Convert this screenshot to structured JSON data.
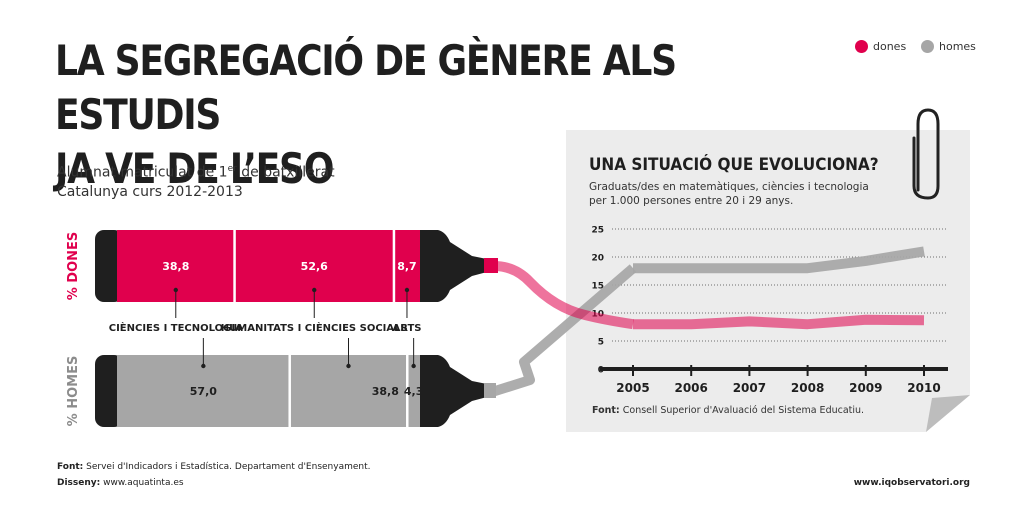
{
  "title_lines": [
    "LA SEGREGACIÓ DE GÈNERE ALS ESTUDIS",
    "JA VE DE L’ESO"
  ],
  "subtitle": {
    "line1_pre": "Alumnat matriculat de 1",
    "line1_sup": "er",
    "line1_post": " de batxillerat",
    "line2": "Catalunya curs 2012-2013"
  },
  "legend": [
    {
      "label": "dones",
      "color": "#e0004d"
    },
    {
      "label": "homes",
      "color": "#a6a6a6"
    }
  ],
  "colors": {
    "dones": "#e0004d",
    "homes": "#a6a6a6",
    "dark": "#1f1f1f",
    "paper": "#ececec"
  },
  "markers": {
    "women_axis_label": "% DONES",
    "men_axis_label": "% HOMES",
    "categories": [
      "CIÈNCIES I TECNOLOGIA",
      "HUMANITATS I CIÈNCIES SOCIALS",
      "ARTS"
    ],
    "women_values": [
      38.8,
      52.6,
      8.7
    ],
    "women_labels": [
      "38,8",
      "52,6",
      "8,7"
    ],
    "men_values": [
      57.0,
      38.8,
      4.3
    ],
    "men_labels": [
      "57,0",
      "38,8",
      "4,3"
    ]
  },
  "chart_data": {
    "type": "line",
    "title": "UNA SITUACIÓ QUE EVOLUCIONA?",
    "subtitle_lines": [
      "Graduats/des en matemàtiques, ciències i tecnologia",
      "per 1.000 persones entre 20 i 29 anys."
    ],
    "x": [
      "2005",
      "2006",
      "2007",
      "2008",
      "2009",
      "2010"
    ],
    "series": [
      {
        "name": "dones",
        "values": [
          8.0,
          8.0,
          8.5,
          8.0,
          8.8,
          8.7
        ]
      },
      {
        "name": "homes",
        "values": [
          18.0,
          18.0,
          18.0,
          18.0,
          19.3,
          21.0
        ]
      }
    ],
    "yticks": [
      "0",
      "5",
      "10",
      "15",
      "20",
      "25"
    ],
    "ylim": [
      0,
      25
    ],
    "source_bold": "Font:",
    "source_text": " Consell Superior d'Avaluació del Sistema Educatiu."
  },
  "footer": {
    "source_bold": "Font:",
    "source_text": " Servei d'Indicadors i Estadística. Departament d'Ensenyament.",
    "design_bold": "Disseny:",
    "design_text": " www.aquatinta.es",
    "site": "www.iqobservatori.org"
  }
}
